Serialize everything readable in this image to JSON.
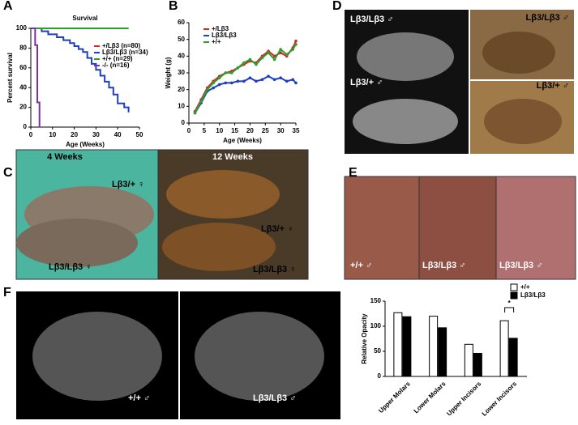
{
  "figure": {
    "panel_labels": [
      "A",
      "B",
      "C",
      "D",
      "E",
      "F"
    ],
    "photo_labels": {
      "D": [
        "Lβ3/Lβ3 ♂",
        "Lβ3/+ ♂",
        "Lβ3/Lβ3 ♂",
        "Lβ3/+ ♂"
      ],
      "C": [
        "4 Weeks",
        "12 Weeks",
        "Lβ3/+ ♀",
        "Lβ3/Lβ3 ♀",
        "Lβ3/+ ♀",
        "Lβ3/Lβ3 ♀"
      ],
      "E": [
        "+/+ ♂",
        "Lβ3/Lβ3 ♂",
        "Lβ3/Lβ3 ♂"
      ],
      "F": [
        "+/+ ♂",
        "Lβ3/Lβ3 ♂"
      ]
    }
  },
  "chart_data": [
    {
      "type": "line",
      "title": "Survival",
      "xlabel": "Age (Weeks)",
      "ylabel": "Percent survival",
      "xlim": [
        0,
        50
      ],
      "xticks": [
        0,
        10,
        20,
        30,
        40,
        50
      ],
      "ylim": [
        0,
        100
      ],
      "yticks": [
        0,
        20,
        40,
        60,
        80,
        100
      ],
      "step": true,
      "legend": "right",
      "series": [
        {
          "name": "+/Lβ3 (n=80)",
          "color": "#d62728",
          "x": [
            0,
            45
          ],
          "values": [
            100,
            100
          ]
        },
        {
          "name": "Lβ3/Lβ3 (n=34)",
          "color": "#1f3fbf",
          "x": [
            0,
            5,
            8,
            12,
            15,
            18,
            20,
            22,
            24,
            26,
            28,
            30,
            32,
            34,
            36,
            38,
            40,
            43,
            45
          ],
          "values": [
            100,
            97,
            94,
            91,
            88,
            85,
            82,
            79,
            76,
            70,
            64,
            58,
            52,
            46,
            40,
            33,
            24,
            20,
            15
          ]
        },
        {
          "name": "+/+ (n=29)",
          "color": "#2ca02c",
          "x": [
            0,
            45
          ],
          "values": [
            100,
            100
          ]
        },
        {
          "name": "-/- (n=16)",
          "color": "#7b2f9e",
          "x": [
            0,
            2,
            3,
            4
          ],
          "values": [
            100,
            83,
            25,
            0
          ]
        }
      ]
    },
    {
      "type": "line",
      "xlabel": "Age (Weeks)",
      "ylabel": "Weight (g)",
      "xlim": [
        0,
        35
      ],
      "xticks": [
        0,
        5,
        10,
        15,
        20,
        25,
        30,
        35
      ],
      "ylim": [
        0,
        60
      ],
      "yticks": [
        0,
        10,
        20,
        30,
        40,
        50,
        60
      ],
      "step": false,
      "legend": "upper left",
      "x": [
        2,
        4,
        6,
        8,
        10,
        12,
        14,
        16,
        18,
        20,
        22,
        24,
        26,
        28,
        30,
        32,
        34,
        35
      ],
      "series": [
        {
          "name": "+/Lβ3",
          "color": "#d62728",
          "values": [
            7,
            14,
            21,
            25,
            28,
            30,
            31,
            33,
            35,
            37,
            36,
            40,
            43,
            40,
            42,
            40,
            45,
            49
          ]
        },
        {
          "name": "Lβ3/Lβ3",
          "color": "#1f3fbf",
          "values": [
            6,
            12,
            19,
            21,
            23,
            24,
            24,
            25,
            25,
            27,
            25,
            26,
            28,
            26,
            27,
            25,
            26,
            24
          ]
        },
        {
          "name": "+/+",
          "color": "#2ca02c",
          "values": [
            6,
            13,
            20,
            24,
            27,
            30,
            30,
            33,
            36,
            38,
            35,
            39,
            42,
            38,
            44,
            41,
            44,
            47
          ]
        }
      ]
    },
    {
      "type": "bar",
      "ylabel": "Relative Opacity",
      "categories": [
        "Upper Molars",
        "Lower Molars",
        "Upper Incisors",
        "Lower Incisors"
      ],
      "ylim": [
        0,
        150
      ],
      "yticks": [
        0,
        50,
        100,
        150
      ],
      "annotation": "*",
      "series": [
        {
          "name": "+/+",
          "color": "#ffffff",
          "values": [
            127,
            120,
            64,
            111
          ]
        },
        {
          "name": "Lβ3/Lβ3",
          "color": "#000000",
          "values": [
            119,
            97,
            46,
            76
          ]
        }
      ]
    }
  ]
}
